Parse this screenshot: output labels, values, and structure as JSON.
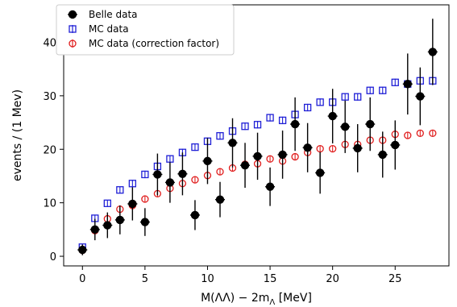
{
  "chart_data": {
    "type": "scatter",
    "xlabel": "M(ΛΛ) − 2m",
    "xlabel_sub": "Λ",
    "xlabel_unit": " [MeV]",
    "ylabel": "events / (1 Mev)",
    "xlim": [
      -1.5,
      29.3
    ],
    "ylim": [
      -1.8,
      47
    ],
    "xticks": [
      0,
      5,
      10,
      15,
      20,
      25
    ],
    "yticks": [
      0,
      10,
      20,
      30,
      40
    ],
    "grid": false,
    "legend_position": "top-left",
    "x": [
      0,
      1,
      2,
      3,
      4,
      5,
      6,
      7,
      8,
      9,
      10,
      11,
      12,
      13,
      14,
      15,
      16,
      17,
      18,
      19,
      20,
      21,
      22,
      23,
      24,
      25,
      26,
      27,
      28
    ],
    "series": [
      {
        "name": "Belle data",
        "marker": "filled-circle",
        "color": "#000000",
        "y": [
          1.2,
          5.0,
          5.8,
          6.8,
          9.8,
          6.4,
          15.3,
          13.8,
          15.4,
          7.7,
          17.8,
          10.6,
          21.2,
          17.0,
          18.7,
          13.0,
          19.0,
          24.7,
          20.3,
          15.6,
          26.2,
          24.2,
          20.2,
          24.7,
          19.0,
          20.8,
          32.2,
          29.9,
          38.2
        ],
        "yerr": [
          1.0,
          2.0,
          2.4,
          2.7,
          3.1,
          2.6,
          3.9,
          3.8,
          4.0,
          2.8,
          4.3,
          3.3,
          4.6,
          4.2,
          4.4,
          3.6,
          4.5,
          5.0,
          4.6,
          3.9,
          5.1,
          4.9,
          4.5,
          5.0,
          4.3,
          4.6,
          5.7,
          5.4,
          6.2
        ]
      },
      {
        "name": "MC data",
        "marker": "open-square",
        "color": "#1f1fd6",
        "y": [
          1.7,
          7.1,
          9.9,
          12.4,
          13.6,
          15.3,
          16.8,
          18.2,
          19.4,
          20.4,
          21.5,
          22.5,
          23.4,
          24.3,
          24.6,
          25.9,
          25.4,
          26.5,
          27.8,
          28.8,
          28.8,
          29.8,
          29.8,
          31.0,
          31.0,
          32.5,
          32.2,
          32.8,
          32.8
        ],
        "yerr": [
          0.4,
          0.6,
          0.6,
          0.6,
          0.7,
          0.7,
          0.7,
          0.7,
          0.7,
          0.7,
          0.7,
          0.7,
          0.7,
          0.7,
          0.7,
          0.7,
          0.7,
          0.7,
          0.7,
          0.7,
          0.7,
          0.7,
          0.7,
          0.7,
          0.7,
          0.7,
          0.7,
          0.7,
          0.7
        ]
      },
      {
        "name": "MC data (correction factor)",
        "marker": "open-circle",
        "color": "#e01d1d",
        "y": [
          1.1,
          4.8,
          7.0,
          8.8,
          9.5,
          10.7,
          11.7,
          12.7,
          13.6,
          14.3,
          15.1,
          15.8,
          16.5,
          17.2,
          17.3,
          18.2,
          17.8,
          18.6,
          19.4,
          20.1,
          20.1,
          20.9,
          20.9,
          21.7,
          21.7,
          22.8,
          22.6,
          23.0,
          23.0
        ],
        "yerr": [
          0.4,
          0.6,
          0.6,
          0.6,
          0.6,
          0.6,
          0.6,
          0.6,
          0.6,
          0.6,
          0.6,
          0.6,
          0.6,
          0.6,
          0.6,
          0.6,
          0.6,
          0.6,
          0.6,
          0.6,
          0.6,
          0.6,
          0.6,
          0.6,
          0.6,
          0.6,
          0.6,
          0.6,
          0.6
        ]
      }
    ]
  }
}
